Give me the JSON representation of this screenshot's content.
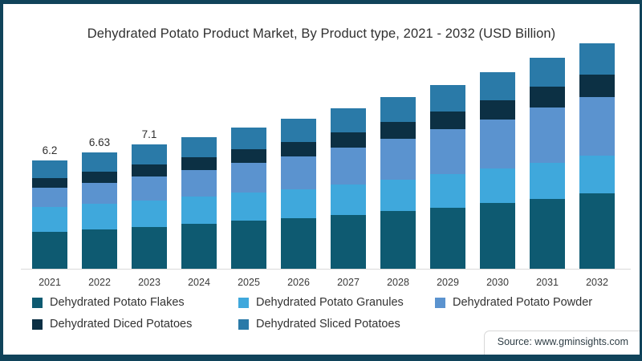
{
  "title": "Dehydrated Potato Product Market, By Product type, 2021 - 2032 (USD Billion)",
  "source_text": "Source: www.gminsights.com",
  "colors": {
    "frame_border": "#10435a",
    "flakes": "#0e5a71",
    "granules": "#3fa8dc",
    "powder": "#5b93cf",
    "diced": "#0c3044",
    "sliced": "#2a7aa8",
    "baseline": "#dbdbdb",
    "text": "#303030"
  },
  "chart_data": {
    "type": "bar",
    "subtype": "stacked-vertical",
    "title": "Dehydrated Potato Product Market, By Product type, 2021 - 2032 (USD Billion)",
    "xlabel": "",
    "ylabel": "USD Billion",
    "grid": false,
    "legend_position": "bottom",
    "categories": [
      "2021",
      "2022",
      "2023",
      "2024",
      "2025",
      "2026",
      "2027",
      "2028",
      "2029",
      "2030",
      "2031",
      "2032"
    ],
    "series": [
      {
        "name": "Dehydrated Potato Flakes",
        "color": "#0e5a71",
        "values": [
          2.12,
          2.25,
          2.4,
          2.56,
          2.73,
          2.89,
          3.09,
          3.29,
          3.5,
          3.74,
          4.0,
          4.3
        ]
      },
      {
        "name": "Dehydrated Potato Granules",
        "color": "#3fa8dc",
        "values": [
          1.4,
          1.45,
          1.5,
          1.55,
          1.61,
          1.67,
          1.74,
          1.81,
          1.89,
          1.97,
          2.06,
          2.15
        ]
      },
      {
        "name": "Dehydrated Potato Powder",
        "color": "#5b93cf",
        "values": [
          1.1,
          1.22,
          1.37,
          1.52,
          1.7,
          1.87,
          2.09,
          2.32,
          2.57,
          2.84,
          3.14,
          3.35
        ]
      },
      {
        "name": "Dehydrated Diced Potatoes",
        "color": "#0c3044",
        "values": [
          0.55,
          0.62,
          0.68,
          0.73,
          0.79,
          0.84,
          0.9,
          0.97,
          1.03,
          1.1,
          1.19,
          1.3
        ]
      },
      {
        "name": "Dehydrated Sliced Potatoes",
        "color": "#2a7aa8",
        "values": [
          1.03,
          1.09,
          1.15,
          1.18,
          1.24,
          1.3,
          1.37,
          1.44,
          1.52,
          1.57,
          1.67,
          1.8
        ]
      }
    ],
    "totals": [
      6.2,
      6.63,
      7.1,
      7.54,
      8.07,
      8.57,
      9.19,
      9.83,
      10.51,
      11.22,
      12.06,
      12.9
    ],
    "visible_total_labels": [
      "6.2",
      "6.63",
      "7.1"
    ],
    "legend_rows": [
      [
        0,
        1,
        2
      ],
      [
        3,
        4
      ]
    ]
  }
}
